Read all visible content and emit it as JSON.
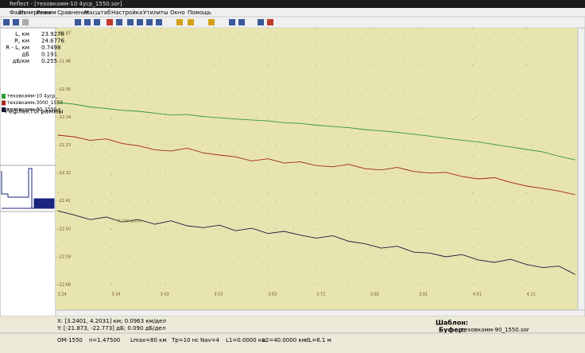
{
  "window": {
    "title": "Reflect - [теховкамм-10 4уср_1550.sor]"
  },
  "menu": [
    "Файл",
    "Измерение",
    "Режим",
    "Сравнение",
    "Масштаб",
    "Настройка",
    "Утилиты",
    "Окно",
    "Помощь"
  ],
  "left_panel": {
    "measurements": [
      {
        "label": "L, км",
        "value": "23.9278"
      },
      {
        "label": "R, км",
        "value": "24.6776"
      },
      {
        "label": "R - L, км",
        "value": "0.7498"
      },
      {
        "label": "дБ",
        "value": "0.191"
      },
      {
        "label": "дБ/км",
        "value": "0.255"
      }
    ],
    "traces_title": "Рефлектограммы",
    "traces": [
      "теховкамм-10 4уср_",
      "теховкамм-3000_1550",
      "теховкамм-90_1550.s"
    ]
  },
  "plot": {
    "xlim": [
      3.236,
      4.205
    ],
    "ylim": [
      -22.731,
      -21.852
    ],
    "xticks": [
      3.24,
      3.34,
      3.43,
      3.53,
      3.63,
      3.72,
      3.82,
      3.91,
      4.01,
      4.11
    ],
    "yticks": [
      -21.87,
      -21.96,
      -22.05,
      -22.14,
      -22.23,
      -22.32,
      -22.41,
      {
        "value": -22.5,
        "label": "-22.50"
      },
      -22.59,
      -22.68
    ],
    "annotation": "0.188 дБ/км",
    "x": [
      3.24,
      3.27,
      3.3,
      3.33,
      3.36,
      3.39,
      3.42,
      3.45,
      3.48,
      3.51,
      3.54,
      3.57,
      3.6,
      3.63,
      3.66,
      3.69,
      3.72,
      3.75,
      3.78,
      3.81,
      3.84,
      3.87,
      3.9,
      3.93,
      3.96,
      3.99,
      4.02,
      4.05,
      4.08,
      4.11,
      4.14,
      4.17,
      4.2
    ],
    "series": [
      {
        "color": "#2e9a2e",
        "values": [
          -22.093,
          -22.098,
          -22.107,
          -22.112,
          -22.118,
          -22.121,
          -22.127,
          -22.133,
          -22.131,
          -22.138,
          -22.142,
          -22.146,
          -22.149,
          -22.152,
          -22.158,
          -22.16,
          -22.166,
          -22.17,
          -22.174,
          -22.18,
          -22.184,
          -22.189,
          -22.195,
          -22.201,
          -22.208,
          -22.214,
          -22.22,
          -22.228,
          -22.236,
          -22.244,
          -22.252,
          -22.266,
          -22.278
        ]
      },
      {
        "color": "#a02418",
        "values": [
          -22.198,
          -22.203,
          -22.215,
          -22.21,
          -22.225,
          -22.232,
          -22.245,
          -22.249,
          -22.24,
          -22.255,
          -22.262,
          -22.268,
          -22.281,
          -22.274,
          -22.288,
          -22.284,
          -22.296,
          -22.3,
          -22.292,
          -22.306,
          -22.31,
          -22.302,
          -22.315,
          -22.32,
          -22.318,
          -22.331,
          -22.339,
          -22.335,
          -22.35,
          -22.362,
          -22.37,
          -22.378,
          -22.39
        ]
      },
      {
        "color": "#1a1a3a",
        "values": [
          -22.442,
          -22.455,
          -22.47,
          -22.462,
          -22.478,
          -22.47,
          -22.485,
          -22.474,
          -22.49,
          -22.496,
          -22.488,
          -22.506,
          -22.498,
          -22.515,
          -22.508,
          -22.52,
          -22.53,
          -22.522,
          -22.54,
          -22.548,
          -22.562,
          -22.556,
          -22.575,
          -22.578,
          -22.59,
          -22.583,
          -22.6,
          -22.608,
          -22.598,
          -22.615,
          -22.625,
          -22.62,
          -22.647
        ]
      }
    ]
  },
  "status": {
    "x_range": "X: [3.2401, 4.2031] км; 0.0963 км/дел",
    "y_range": "Y: [-21.873, -22.773] дБ; 0.090 дБ/дел",
    "template_label": "Шаблон:",
    "buffer_label": "Буфер:",
    "buffer_value": "теховкамм-90_1550.sor",
    "params": [
      "OM-1550",
      "n=1.47500",
      "Lmax=80 км",
      "Tp=10 нс",
      "Nav=4",
      "L1=0.0000 км",
      "L2=40.0000 км",
      "dL=6.1 м"
    ]
  }
}
